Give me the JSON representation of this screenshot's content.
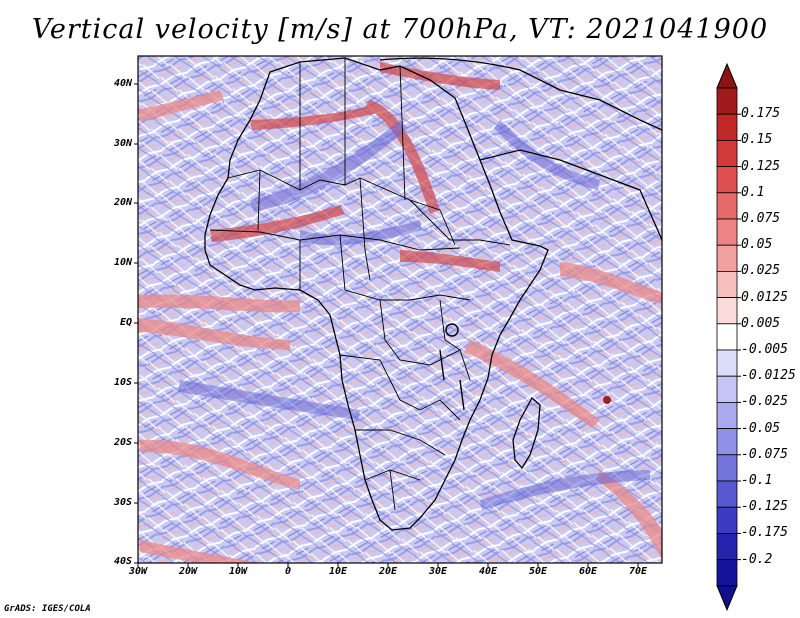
{
  "title": "Vertical velocity [m/s] at 700hPa, VT: 2021041900",
  "credit": "GrADS: IGES/COLA",
  "map": {
    "region": "Africa",
    "variable": "vertical velocity",
    "level": "700hPa",
    "lat_range": [
      -40,
      45
    ],
    "lon_range": [
      -30,
      77
    ],
    "lat_labels": [
      "40N",
      "30N",
      "20N",
      "10N",
      "EQ",
      "10S",
      "20S",
      "30S",
      "40S"
    ],
    "lon_labels": [
      "30W",
      "20W",
      "10W",
      "0",
      "10E",
      "20E",
      "30E",
      "40E",
      "50E",
      "60E",
      "70E"
    ],
    "boundaries": "black country borders and coastlines"
  },
  "colorbar": {
    "labels": [
      "0.175",
      "0.15",
      "0.125",
      "0.1",
      "0.075",
      "0.05",
      "0.025",
      "0.0125",
      "0.005",
      "-0.005",
      "-0.0125",
      "-0.025",
      "-0.05",
      "-0.075",
      "-0.1",
      "-0.125",
      "-0.175",
      "-0.2"
    ],
    "colors": [
      "#a01c1c",
      "#c02828",
      "#d23a3a",
      "#de5050",
      "#e66a6a",
      "#ec8484",
      "#f2a0a0",
      "#f7bebe",
      "#fbdada",
      "#ffffff",
      "#dcdcfb",
      "#c4c4f5",
      "#aaaaee",
      "#9090e6",
      "#7474dc",
      "#5858d0",
      "#3c3cc2",
      "#2424ae",
      "#14149a"
    ],
    "top_arrow_color": "#8c1414",
    "bottom_arrow_color": "#10108a"
  }
}
